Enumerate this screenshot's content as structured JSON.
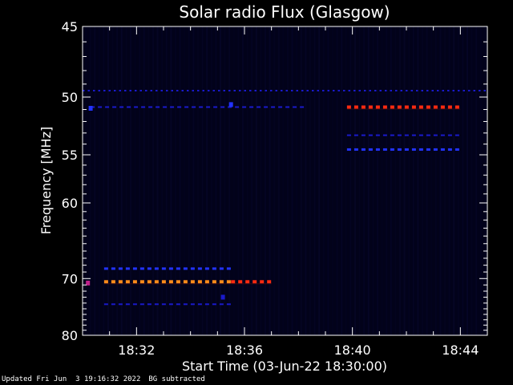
{
  "chart_data": {
    "type": "heatmap",
    "title": "Solar radio Flux (Glasgow)",
    "xlabel": "Start Time (03-Jun-22 18:30:00)",
    "ylabel": "Frequency [MHz]",
    "x_range_minutes": [
      0,
      15
    ],
    "y_axis": {
      "scale": "reciprocal",
      "range_mhz": [
        45,
        80
      ]
    },
    "x_ticks": [
      {
        "value": 2,
        "label": "18:32"
      },
      {
        "value": 6,
        "label": "18:36"
      },
      {
        "value": 10,
        "label": "18:40"
      },
      {
        "value": 14,
        "label": "18:44"
      }
    ],
    "y_ticks": [
      {
        "value": 45,
        "label": "45"
      },
      {
        "value": 50,
        "label": "50"
      },
      {
        "value": 55,
        "label": "55"
      },
      {
        "value": 60,
        "label": "60"
      },
      {
        "value": 70,
        "label": "70"
      },
      {
        "value": 80,
        "label": "80"
      }
    ],
    "colors": {
      "background": "#000000",
      "plot_background": "#02021a",
      "axis": "#ffffff",
      "low": "#1a1acc",
      "mid": "#2233ff",
      "high_orange": "#ff8c1a",
      "high_red": "#ff2a10",
      "magenta": "#c0208a"
    },
    "bands": [
      {
        "freq": 49.5,
        "start": 0.0,
        "end": 15.0,
        "level": "low",
        "dashed": true
      },
      {
        "freq": 50.8,
        "start": 0.3,
        "end": 8.1,
        "level": "low",
        "dashed": true
      },
      {
        "freq": 50.8,
        "start": 9.8,
        "end": 14.0,
        "level": "high_red",
        "dashed": true
      },
      {
        "freq": 53.2,
        "start": 9.8,
        "end": 14.0,
        "level": "low",
        "dashed": true
      },
      {
        "freq": 54.5,
        "start": 9.8,
        "end": 14.0,
        "level": "mid",
        "dashed": true
      },
      {
        "freq": 68.5,
        "start": 0.8,
        "end": 5.5,
        "level": "mid",
        "dashed": true
      },
      {
        "freq": 70.5,
        "start": 0.8,
        "end": 5.5,
        "level": "high_orange",
        "dashed": true
      },
      {
        "freq": 70.5,
        "start": 5.5,
        "end": 7.0,
        "level": "high_red",
        "dashed": true
      },
      {
        "freq": 74.2,
        "start": 0.8,
        "end": 5.5,
        "level": "low",
        "dashed": true
      }
    ],
    "spots": [
      {
        "freq": 50.9,
        "time": 0.3,
        "level": "mid"
      },
      {
        "freq": 70.7,
        "time": 0.2,
        "level": "magenta"
      },
      {
        "freq": 50.6,
        "time": 5.5,
        "level": "mid"
      },
      {
        "freq": 73.0,
        "time": 5.2,
        "level": "low"
      }
    ]
  },
  "footer": {
    "updated": "Updated Fri Jun  3 19:16:32 2022",
    "mode": "BG subtracted"
  }
}
